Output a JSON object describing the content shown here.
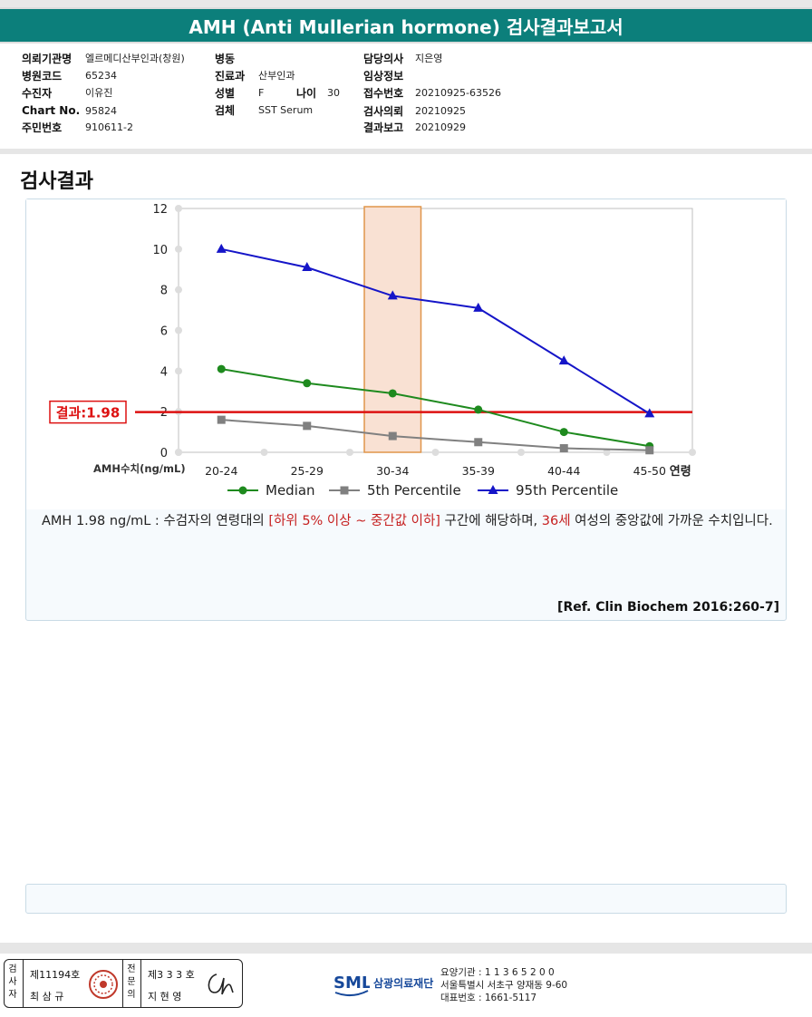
{
  "report_title": "AMH (Anti Mullerian hormone) 검사결과보고서",
  "info": {
    "requester_label": "의뢰기관명",
    "requester_value": "엘르메디산부인과(창원)",
    "hospital_code_label": "병원코드",
    "hospital_code_value": "65234",
    "patient_label": "수진자",
    "patient_value": "이유진",
    "chart_no_label": "Chart No.",
    "chart_no_value": "95824",
    "ssn_label": "주민번호",
    "ssn_value": "910611-2",
    "ward_label": "병동",
    "ward_value": "",
    "dept_label": "진료과",
    "dept_value": "산부인과",
    "sex_label": "성별",
    "sex_value": "F",
    "age_label": "나이",
    "age_value": "30",
    "specimen_label": "검체",
    "specimen_value": "SST Serum",
    "doctor_label": "담당의사",
    "doctor_value": "지은영",
    "clinical_label": "임상정보",
    "clinical_value": "",
    "receipt_label": "접수번호",
    "receipt_value": "20210925-63526",
    "request_label": "검사의뢰",
    "request_value": "20210925",
    "report_label": "결과보고",
    "report_value": "20210929"
  },
  "section_title": "검사결과",
  "chart_data": {
    "type": "line",
    "categories": [
      "20-24",
      "25-29",
      "30-34",
      "35-39",
      "40-44",
      "45-50"
    ],
    "x_axis_suffix": "연령",
    "ylabel": "AMH수치(ng/mL)",
    "ylim": [
      0,
      12
    ],
    "yticks": [
      "0",
      "2",
      "4",
      "6",
      "8",
      "10",
      "12"
    ],
    "series": [
      {
        "name": "Median",
        "color": "#1e8a1e",
        "marker": "circle",
        "values": [
          4.1,
          3.4,
          2.9,
          2.1,
          1.0,
          0.3
        ]
      },
      {
        "name": "5th Percentile",
        "color": "#808080",
        "marker": "square",
        "values": [
          1.6,
          1.3,
          0.8,
          0.5,
          0.2,
          0.1
        ]
      },
      {
        "name": "95th Percentile",
        "color": "#1515c8",
        "marker": "triangle",
        "values": [
          10.0,
          9.1,
          7.7,
          7.1,
          4.5,
          1.9
        ]
      }
    ],
    "highlight_category": "30-34",
    "result_line": {
      "label": "결과:1.98",
      "value": 1.98,
      "color": "#dd1111"
    }
  },
  "interpretation": {
    "part1": "AMH  1.98 ng/mL : 수검자의 연령대의 ",
    "range_text": "[하위 5% 이상 ~ 중간값 이하]",
    "part2": "  구간에 해당하며, ",
    "age_text": "36세",
    "part3": " 여성의 중앙값에 가까운 수치입니다."
  },
  "reference": "[Ref. Clin Biochem 2016:260-7]",
  "footer": {
    "examiner_vertical": "검사자",
    "examiner_license": "제11194호",
    "examiner_name": "최 삼 규",
    "specialist_vertical": "전문의",
    "specialist_license": "제3 3 3 호",
    "specialist_name": "지 현 영",
    "logo_text": "SML",
    "org_name": "삼광의료재단",
    "lab_code": "요양기관 : 1 1 3 6 5 2 0 0",
    "address": "서울특별시 서초구 양재동 9-60",
    "phone": "대표번호 : 1661-5117"
  }
}
